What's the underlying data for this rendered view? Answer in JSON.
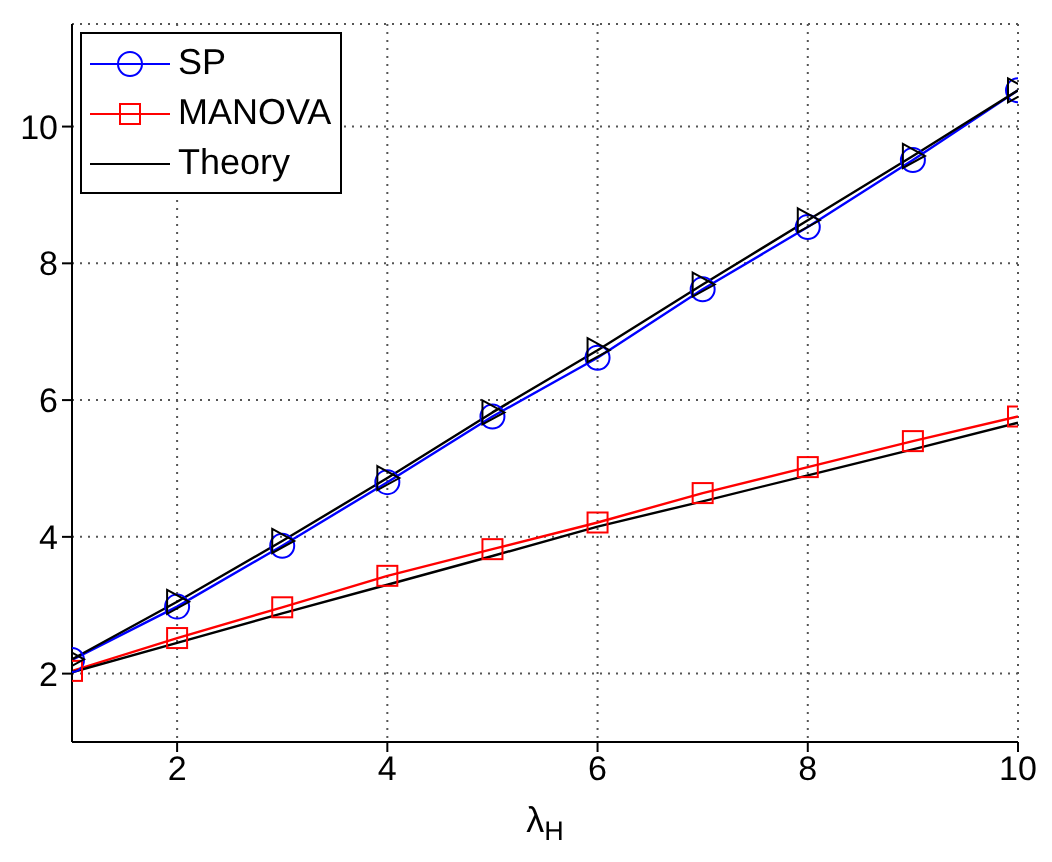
{
  "chart_data": {
    "type": "line",
    "xlabel": "λ$_{H}$",
    "x": [
      1,
      2,
      3,
      4,
      5,
      6,
      7,
      8,
      9,
      10
    ],
    "xlim": [
      1,
      10
    ],
    "xticks": [
      2,
      4,
      6,
      8,
      10
    ],
    "ylim": [
      1,
      11.5
    ],
    "yticks": [
      2,
      4,
      6,
      8,
      10
    ],
    "grid": true,
    "legend": "top left",
    "line_style": "solid",
    "series": [
      {
        "name": "SP",
        "color": "#0000ff",
        "marker": "circle",
        "values": [
          2.2,
          2.98,
          3.87,
          4.8,
          5.76,
          6.62,
          7.62,
          8.53,
          9.51,
          10.53
        ]
      },
      {
        "name": "MANOVA",
        "color": "#ff0000",
        "marker": "square",
        "values": [
          2.04,
          2.52,
          2.97,
          3.43,
          3.82,
          4.21,
          4.64,
          5.02,
          5.4,
          5.76
        ]
      },
      {
        "name": "Theory",
        "color": "#000000",
        "marker": "none",
        "values": [
          2.02,
          2.45,
          2.88,
          3.3,
          3.72,
          4.15,
          4.52,
          4.9,
          5.28,
          5.67
        ]
      },
      {
        "color": "#000000",
        "marker": "triangle",
        "values": [
          2.21,
          3.05,
          3.94,
          4.86,
          5.82,
          6.73,
          7.69,
          8.63,
          9.57,
          10.53
        ]
      }
    ]
  }
}
